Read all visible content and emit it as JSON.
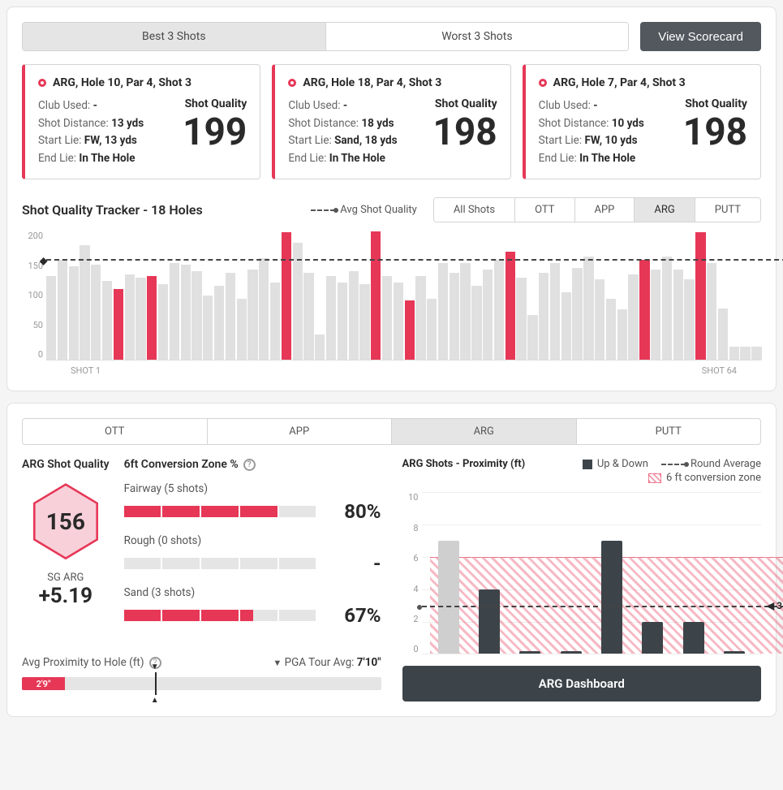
{
  "colors": {
    "accent": "#e63757",
    "dark": "#3d4449",
    "muted_bar": "#e0e0e0",
    "grey_bar": "#cfcfcf",
    "panel_border": "#e0e0e0"
  },
  "topTabs": {
    "best": "Best 3 Shots",
    "worst": "Worst 3 Shots",
    "activeIndex": 0
  },
  "scorecardBtn": "View Scorecard",
  "shotCards": [
    {
      "title": "ARG, Hole 10, Par 4, Shot 3",
      "club_label": "Club Used:",
      "club": "-",
      "dist_label": "Shot Distance:",
      "dist": "13 yds",
      "start_label": "Start Lie:",
      "start": "FW, 13 yds",
      "end_label": "End Lie:",
      "end": "In The Hole",
      "quality_label": "Shot Quality",
      "quality": "199"
    },
    {
      "title": "ARG, Hole 18, Par 4, Shot 3",
      "club_label": "Club Used:",
      "club": "-",
      "dist_label": "Shot Distance:",
      "dist": "18 yds",
      "start_label": "Start Lie:",
      "start": "Sand, 18 yds",
      "end_label": "End Lie:",
      "end": "In The Hole",
      "quality_label": "Shot Quality",
      "quality": "198"
    },
    {
      "title": "ARG, Hole 7, Par 4, Shot 3",
      "club_label": "Club Used:",
      "club": "-",
      "dist_label": "Shot Distance:",
      "dist": "10 yds",
      "start_label": "Start Lie:",
      "start": "FW, 10 yds",
      "end_label": "End Lie:",
      "end": "In The Hole",
      "quality_label": "Shot Quality",
      "quality": "198"
    }
  ],
  "tracker": {
    "title": "Shot Quality Tracker - 18 Holes",
    "avgLegend": "Avg Shot Quality",
    "filters": [
      "All Shots",
      "OTT",
      "APP",
      "ARG",
      "PUTT"
    ],
    "activeFilter": 3,
    "yTicks": [
      "200",
      "150",
      "100",
      "50",
      "0"
    ],
    "yMax": 200,
    "avgValue": 156,
    "xStart": "SHOT 1",
    "xEnd": "SHOT 64",
    "bars": [
      {
        "v": 130,
        "hl": false
      },
      {
        "v": 155,
        "hl": false
      },
      {
        "v": 145,
        "hl": false
      },
      {
        "v": 178,
        "hl": false
      },
      {
        "v": 148,
        "hl": false
      },
      {
        "v": 122,
        "hl": false
      },
      {
        "v": 110,
        "hl": true
      },
      {
        "v": 133,
        "hl": false
      },
      {
        "v": 128,
        "hl": false
      },
      {
        "v": 130,
        "hl": true
      },
      {
        "v": 118,
        "hl": false
      },
      {
        "v": 150,
        "hl": false
      },
      {
        "v": 148,
        "hl": false
      },
      {
        "v": 138,
        "hl": false
      },
      {
        "v": 100,
        "hl": false
      },
      {
        "v": 115,
        "hl": false
      },
      {
        "v": 135,
        "hl": false
      },
      {
        "v": 95,
        "hl": false
      },
      {
        "v": 140,
        "hl": false
      },
      {
        "v": 158,
        "hl": false
      },
      {
        "v": 120,
        "hl": false
      },
      {
        "v": 198,
        "hl": true
      },
      {
        "v": 182,
        "hl": false
      },
      {
        "v": 135,
        "hl": false
      },
      {
        "v": 40,
        "hl": false
      },
      {
        "v": 130,
        "hl": false
      },
      {
        "v": 120,
        "hl": false
      },
      {
        "v": 138,
        "hl": false
      },
      {
        "v": 118,
        "hl": false
      },
      {
        "v": 199,
        "hl": true
      },
      {
        "v": 130,
        "hl": false
      },
      {
        "v": 120,
        "hl": false
      },
      {
        "v": 92,
        "hl": true
      },
      {
        "v": 130,
        "hl": false
      },
      {
        "v": 95,
        "hl": false
      },
      {
        "v": 150,
        "hl": false
      },
      {
        "v": 135,
        "hl": false
      },
      {
        "v": 150,
        "hl": false
      },
      {
        "v": 115,
        "hl": false
      },
      {
        "v": 140,
        "hl": false
      },
      {
        "v": 155,
        "hl": false
      },
      {
        "v": 168,
        "hl": true
      },
      {
        "v": 128,
        "hl": false
      },
      {
        "v": 70,
        "hl": false
      },
      {
        "v": 135,
        "hl": false
      },
      {
        "v": 150,
        "hl": false
      },
      {
        "v": 105,
        "hl": false
      },
      {
        "v": 143,
        "hl": false
      },
      {
        "v": 160,
        "hl": false
      },
      {
        "v": 125,
        "hl": false
      },
      {
        "v": 95,
        "hl": false
      },
      {
        "v": 78,
        "hl": false
      },
      {
        "v": 133,
        "hl": false
      },
      {
        "v": 155,
        "hl": true
      },
      {
        "v": 140,
        "hl": false
      },
      {
        "v": 160,
        "hl": false
      },
      {
        "v": 140,
        "hl": false
      },
      {
        "v": 125,
        "hl": false
      },
      {
        "v": 198,
        "hl": true
      },
      {
        "v": 150,
        "hl": false
      },
      {
        "v": 80,
        "hl": false
      },
      {
        "v": 20,
        "hl": false
      },
      {
        "v": 20,
        "hl": false
      },
      {
        "v": 20,
        "hl": false
      }
    ]
  },
  "bottomTabs": {
    "items": [
      "OTT",
      "APP",
      "ARG",
      "PUTT"
    ],
    "active": 2
  },
  "argQuality": {
    "title": "ARG Shot Quality",
    "hexValue": "156",
    "sgLabel": "SG ARG",
    "sgValue": "+5.19"
  },
  "conversion": {
    "title": "6ft Conversion Zone %",
    "rows": [
      {
        "label": "Fairway (5 shots)",
        "filled": 4,
        "total": 5,
        "pct": "80%"
      },
      {
        "label": "Rough (0 shots)",
        "filled": 0,
        "total": 5,
        "pct": "-"
      },
      {
        "label": "Sand (3 shots)",
        "filled": 3.35,
        "total": 5,
        "pct": "67%"
      }
    ]
  },
  "proximityFooter": {
    "label": "Avg Proximity to Hole (ft)",
    "pgaLabel": "PGA Tour Avg:",
    "pgaValue": "7'10\"",
    "fillLabel": "2'9\"",
    "fillPct": 12,
    "tickPct": 37
  },
  "proximityChart": {
    "title": "ARG Shots - Proximity (ft)",
    "legendUpDown": "Up & Down",
    "legendAvg": "Round Average",
    "legendZone": "6 ft conversion zone",
    "yTicks": [
      "10",
      "8",
      "6",
      "4",
      "2",
      "0"
    ],
    "yMax": 10,
    "zoneTop": 6,
    "avgValue": 3,
    "bars": [
      {
        "v": 7,
        "color": "grey"
      },
      {
        "v": 4,
        "color": "dark"
      },
      {
        "v": 0.15,
        "color": "dark"
      },
      {
        "v": 0.15,
        "color": "dark"
      },
      {
        "v": 7,
        "color": "dark"
      },
      {
        "v": 2,
        "color": "dark"
      },
      {
        "v": 2,
        "color": "dark"
      },
      {
        "v": 0.15,
        "color": "dark"
      }
    ],
    "dashboardBtn": "ARG Dashboard"
  }
}
